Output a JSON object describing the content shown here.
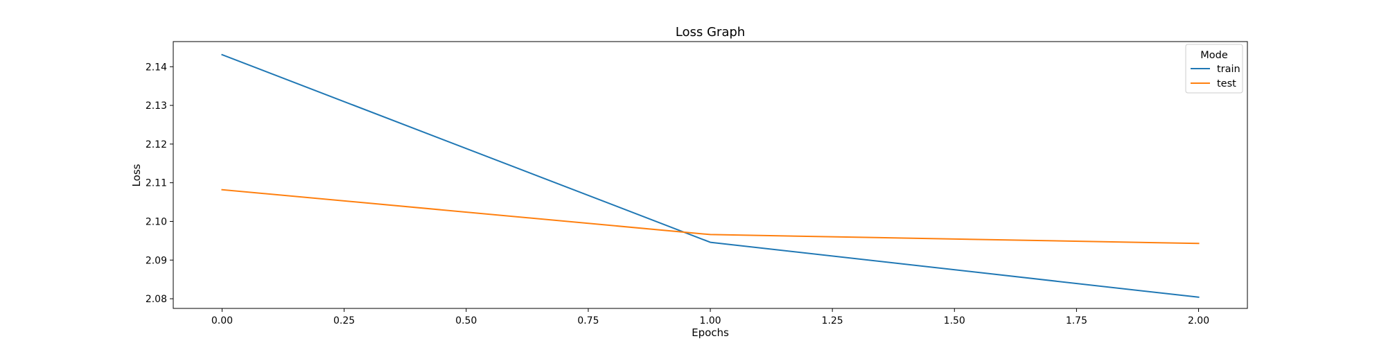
{
  "chart_data": {
    "type": "line",
    "title": "Loss Graph",
    "xlabel": "Epochs",
    "ylabel": "Loss",
    "x": [
      0,
      1,
      2
    ],
    "xlim": [
      -0.1,
      2.1
    ],
    "ylim": [
      2.0775,
      2.1465
    ],
    "xticks": [
      0.0,
      0.25,
      0.5,
      0.75,
      1.0,
      1.25,
      1.5,
      1.75,
      2.0
    ],
    "xtick_labels": [
      "0.00",
      "0.25",
      "0.50",
      "0.75",
      "1.00",
      "1.25",
      "1.50",
      "1.75",
      "2.00"
    ],
    "yticks": [
      2.08,
      2.09,
      2.1,
      2.11,
      2.12,
      2.13,
      2.14
    ],
    "ytick_labels": [
      "2.08",
      "2.09",
      "2.10",
      "2.11",
      "2.12",
      "2.13",
      "2.14"
    ],
    "grid": false,
    "legend": {
      "title": "Mode",
      "placement": "top-right"
    },
    "series": [
      {
        "name": "train",
        "color": "#1f77b4",
        "values": [
          2.1431,
          2.0946,
          2.0804
        ]
      },
      {
        "name": "test",
        "color": "#ff7f0e",
        "values": [
          2.1082,
          2.0966,
          2.0943
        ]
      }
    ]
  }
}
